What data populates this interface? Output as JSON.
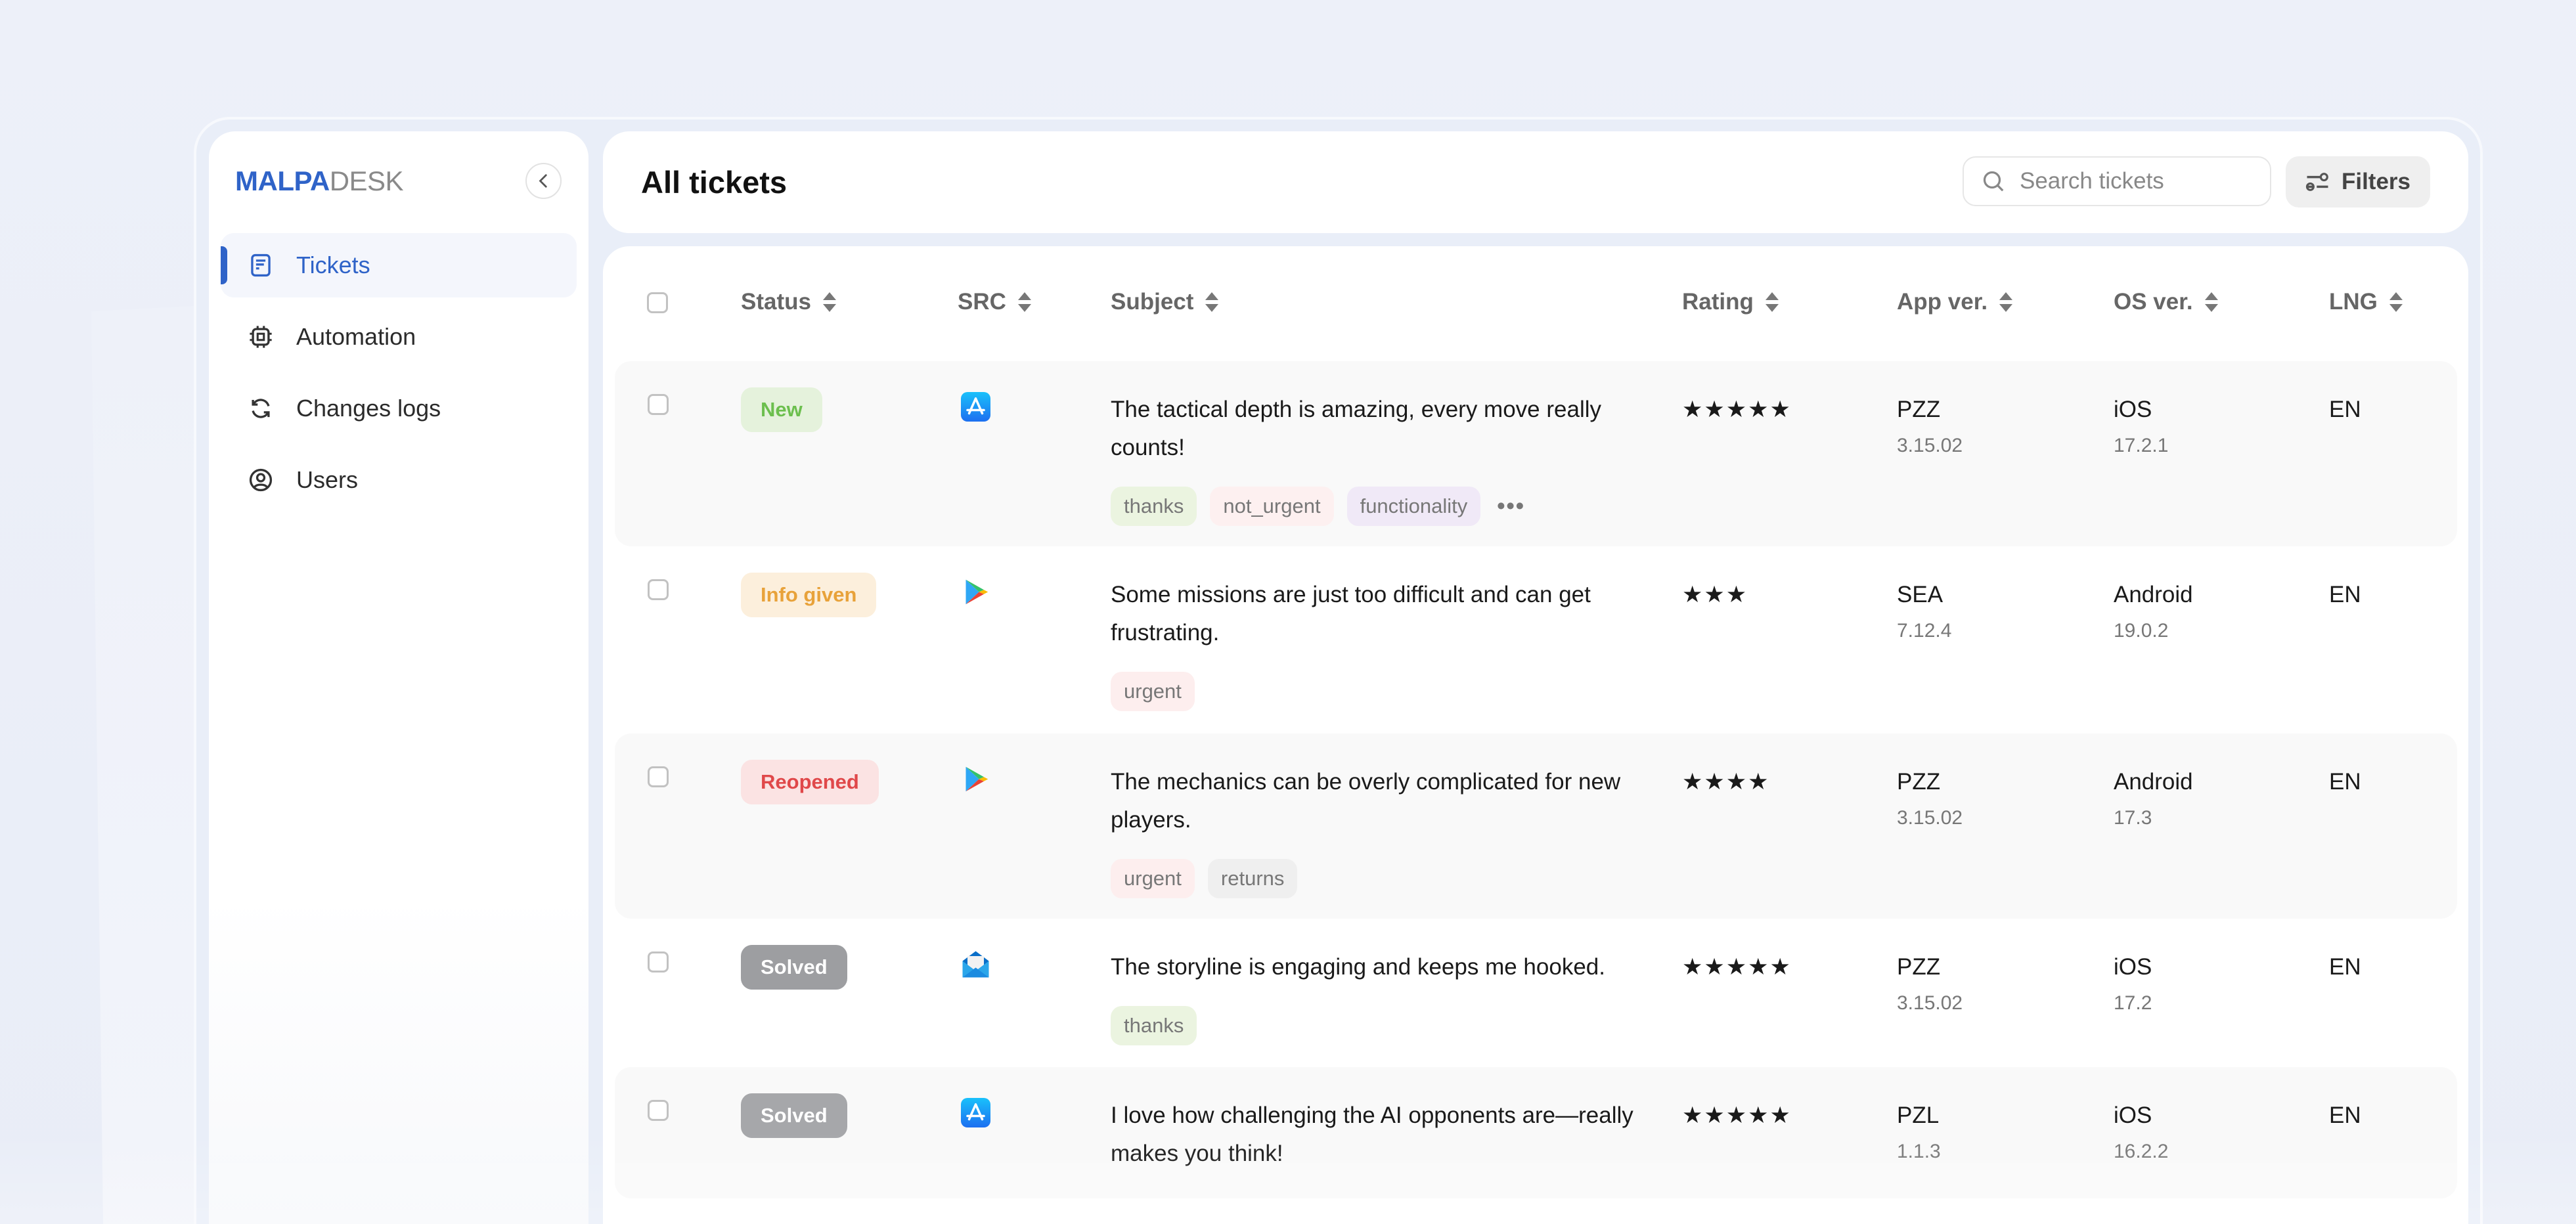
{
  "brand": {
    "part1": "MALPA",
    "part2": "DESK"
  },
  "sidebar": {
    "collapse_icon": "chevron-left-icon",
    "items": [
      {
        "label": "Tickets",
        "icon": "document-icon",
        "active": true
      },
      {
        "label": "Automation",
        "icon": "cpu-chip-icon",
        "active": false
      },
      {
        "label": "Changes logs",
        "icon": "refresh-icon",
        "active": false
      },
      {
        "label": "Users",
        "icon": "user-circle-icon",
        "active": false
      }
    ]
  },
  "header": {
    "title": "All tickets",
    "search_placeholder": "Search tickets",
    "search_value": "",
    "filters_label": "Filters"
  },
  "table": {
    "columns": [
      "Status",
      "SRC",
      "Subject",
      "Rating",
      "App ver.",
      "OS ver.",
      "LNG"
    ],
    "rows": [
      {
        "status": "New",
        "status_color": "#6cbf4e",
        "status_bg": "#e5f2dc",
        "src": "app-store-icon",
        "subject": "The tactical depth is amazing, every move really counts!",
        "tags": [
          "thanks",
          "not_urgent",
          "functionality"
        ],
        "has_more": true,
        "more": "•••",
        "rating": 5,
        "stars": "★★★★★",
        "app": "PZZ",
        "app_ver": "3.15.02",
        "os": "iOS",
        "os_ver": "17.2.1",
        "lng": "EN"
      },
      {
        "status": "Info given",
        "status_color": "#e8a23a",
        "status_bg": "#fcefdc",
        "src": "google-play-icon",
        "subject": "Some missions are just too difficult and can get frustrating.",
        "tags": [
          "urgent"
        ],
        "has_more": false,
        "rating": 3,
        "stars": "★★★",
        "app": "SEA",
        "app_ver": "7.12.4",
        "os": "Android",
        "os_ver": "19.0.2",
        "lng": "EN"
      },
      {
        "status": "Reopened",
        "status_color": "#e0484a",
        "status_bg": "#fbe3e3",
        "src": "google-play-icon",
        "subject": "The mechanics can be overly complicated for new players.",
        "tags": [
          "urgent",
          "returns"
        ],
        "has_more": false,
        "rating": 4,
        "stars": "★★★★",
        "app": "PZZ",
        "app_ver": "3.15.02",
        "os": "Android",
        "os_ver": "17.3",
        "lng": "EN"
      },
      {
        "status": "Solved",
        "status_color": "#ffffff",
        "status_bg": "#9d9ea1",
        "src": "email-icon",
        "subject": "The storyline is engaging and keeps me hooked.",
        "tags": [
          "thanks"
        ],
        "has_more": false,
        "rating": 5,
        "stars": "★★★★★",
        "app": "PZZ",
        "app_ver": "3.15.02",
        "os": "iOS",
        "os_ver": "17.2",
        "lng": "EN"
      },
      {
        "status": "Solved",
        "status_color": "#ffffff",
        "status_bg": "#a6a7aa",
        "src": "app-store-icon",
        "subject": "I love how challenging the AI opponents are—really makes you think!",
        "tags": [],
        "has_more": false,
        "rating": 5,
        "stars": "★★★★★",
        "app": "PZL",
        "app_ver": "1.1.3",
        "os": "iOS",
        "os_ver": "16.2.2",
        "lng": "EN"
      }
    ]
  },
  "tag_colors": {
    "thanks": "#ebf4e0",
    "not_urgent": "#fdf0f0",
    "functionality": "#f0e9f7",
    "urgent": "#fdeeee",
    "returns": "#efefef"
  },
  "accent": "#2f63c8"
}
